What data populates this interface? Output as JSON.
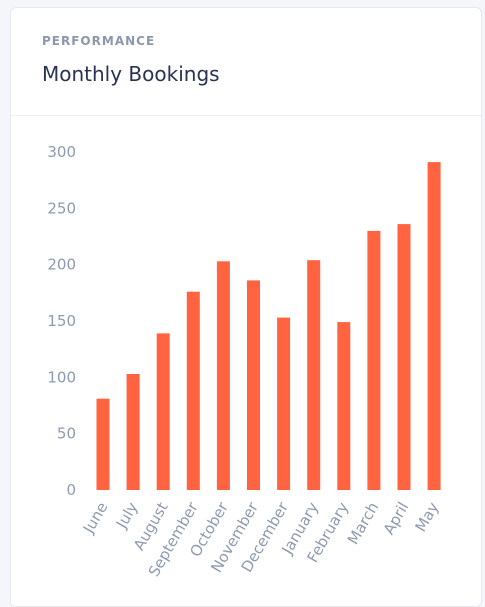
{
  "card": {
    "eyebrow": "PERFORMANCE",
    "title": "Monthly Bookings"
  },
  "colors": {
    "bar": "#ff6340",
    "tick_text": "#8e9ab0",
    "title": "#283252",
    "eyebrow": "#8d97ab"
  },
  "chart_data": {
    "type": "bar",
    "categories": [
      "June",
      "July",
      "August",
      "September",
      "October",
      "November",
      "December",
      "January",
      "February",
      "March",
      "April",
      "May"
    ],
    "values": [
      81,
      103,
      139,
      176,
      203,
      186,
      153,
      204,
      149,
      230,
      236,
      291
    ],
    "title": "",
    "xlabel": "",
    "ylabel": "",
    "ylim": [
      0,
      300
    ],
    "yticks": [
      "0",
      "50",
      "100",
      "150",
      "200",
      "250",
      "300"
    ],
    "grid": false,
    "legend": "none"
  }
}
